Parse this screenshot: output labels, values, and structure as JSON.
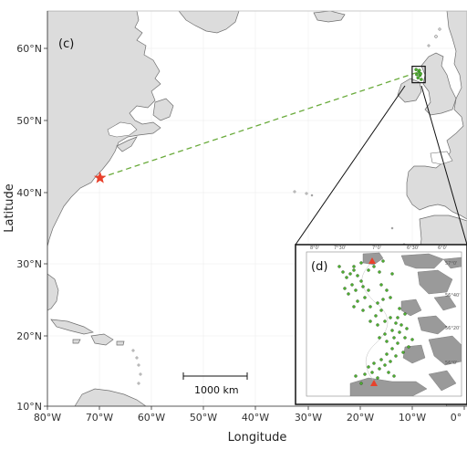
{
  "map": {
    "panel_label": "(c)",
    "xlabel": "Longitude",
    "ylabel": "Latitude",
    "lon_ticks": [
      "80°W",
      "70°W",
      "60°W",
      "50°W",
      "40°W",
      "30°W",
      "20°W",
      "10°W",
      "0°"
    ],
    "lat_ticks": [
      "10°N",
      "20°N",
      "30°N",
      "40°N",
      "50°N",
      "60°N"
    ],
    "lon_range": [
      -80,
      0
    ],
    "lat_range": [
      10,
      63
    ],
    "scale_bar_label": "1000 km",
    "origin_marker": {
      "name": "origin-star",
      "lon": -69.9,
      "lat": 41.9,
      "color": "#e8412c"
    },
    "destination_box": {
      "lon_min": -10.0,
      "lon_max": -7.5,
      "lat_min": 55.2,
      "lat_max": 57.5
    },
    "track": {
      "from": [
        -69.9,
        41.9
      ],
      "to": [
        -8.8,
        56.7
      ],
      "color": "#6aab3c",
      "style": "dashed"
    },
    "colors": {
      "land": "#dcdcdc",
      "sea": "#ffffff",
      "coast": "#6e6e6e",
      "track": "#6aab3c",
      "marker": "#e8412c",
      "points": "#4caf2f"
    }
  },
  "inset": {
    "panel_label": "(d)",
    "lon_ticks": [
      "8°0'",
      "7°30'",
      "7°0'",
      "6°30'",
      "6°0'"
    ],
    "lat_ticks": [
      "57°0'",
      "56°40'",
      "56°20'",
      "56°0'"
    ],
    "colors": {
      "land": "#9a9a9a",
      "point": "#4caf2f",
      "marker": "#e8412c"
    }
  }
}
